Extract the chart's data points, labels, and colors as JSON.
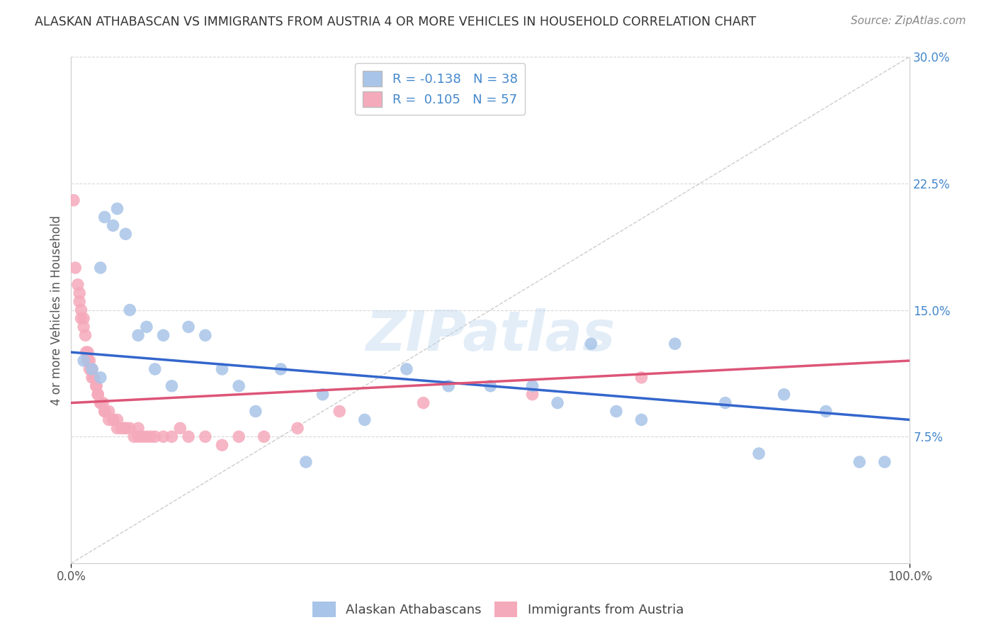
{
  "title": "ALASKAN ATHABASCAN VS IMMIGRANTS FROM AUSTRIA 4 OR MORE VEHICLES IN HOUSEHOLD CORRELATION CHART",
  "source": "Source: ZipAtlas.com",
  "ylabel": "4 or more Vehicles in Household",
  "xlim": [
    0,
    100
  ],
  "ylim": [
    0,
    30
  ],
  "ytick_labels_right": [
    "7.5%",
    "15.0%",
    "22.5%",
    "30.0%"
  ],
  "ytick_vals_right": [
    7.5,
    15.0,
    22.5,
    30.0
  ],
  "blue_R": "-0.138",
  "blue_N": "38",
  "pink_R": "0.105",
  "pink_N": "57",
  "blue_color": "#a8c4e8",
  "pink_color": "#f5aabb",
  "blue_line_color": "#3366cc",
  "pink_line_color": "#dd5577",
  "diagonal_color": "#cccccc",
  "legend_label_blue": "Alaskan Athabascans",
  "legend_label_pink": "Immigrants from Austria",
  "blue_points_x": [
    1.5,
    2.5,
    3.5,
    3.5,
    4.0,
    5.0,
    5.5,
    6.5,
    7.0,
    8.0,
    9.0,
    10.0,
    11.0,
    12.0,
    14.0,
    16.0,
    18.0,
    20.0,
    22.0,
    25.0,
    28.0,
    30.0,
    35.0,
    40.0,
    45.0,
    50.0,
    55.0,
    58.0,
    62.0,
    65.0,
    68.0,
    72.0,
    78.0,
    82.0,
    85.0,
    90.0,
    94.0,
    97.0
  ],
  "blue_points_y": [
    12.0,
    11.5,
    17.5,
    11.0,
    20.5,
    20.0,
    21.0,
    19.5,
    15.0,
    13.5,
    14.0,
    11.5,
    13.5,
    10.5,
    14.0,
    13.5,
    11.5,
    10.5,
    9.0,
    11.5,
    6.0,
    10.0,
    8.5,
    11.5,
    10.5,
    10.5,
    10.5,
    9.5,
    13.0,
    9.0,
    8.5,
    13.0,
    9.5,
    6.5,
    10.0,
    9.0,
    6.0,
    6.0
  ],
  "pink_points_x": [
    0.3,
    0.5,
    0.8,
    1.0,
    1.0,
    1.2,
    1.2,
    1.5,
    1.5,
    1.7,
    1.8,
    2.0,
    2.0,
    2.2,
    2.2,
    2.5,
    2.5,
    2.7,
    3.0,
    3.0,
    3.2,
    3.2,
    3.5,
    3.5,
    3.8,
    4.0,
    4.0,
    4.5,
    4.5,
    5.0,
    5.0,
    5.5,
    5.5,
    6.0,
    6.5,
    6.5,
    7.0,
    7.5,
    8.0,
    8.0,
    8.5,
    9.0,
    9.5,
    10.0,
    11.0,
    12.0,
    13.0,
    14.0,
    16.0,
    18.0,
    20.0,
    23.0,
    27.0,
    32.0,
    42.0,
    55.0,
    68.0
  ],
  "pink_points_y": [
    21.5,
    17.5,
    16.5,
    16.0,
    15.5,
    15.0,
    14.5,
    14.5,
    14.0,
    13.5,
    12.5,
    12.5,
    12.0,
    12.0,
    11.5,
    11.5,
    11.0,
    11.0,
    10.5,
    10.5,
    10.0,
    10.0,
    9.5,
    9.5,
    9.5,
    9.0,
    9.0,
    9.0,
    8.5,
    8.5,
    8.5,
    8.5,
    8.0,
    8.0,
    8.0,
    8.0,
    8.0,
    7.5,
    8.0,
    7.5,
    7.5,
    7.5,
    7.5,
    7.5,
    7.5,
    7.5,
    8.0,
    7.5,
    7.5,
    7.0,
    7.5,
    7.5,
    8.0,
    9.0,
    9.5,
    10.0,
    11.0
  ],
  "watermark_text": "ZIPatlas",
  "background_color": "#ffffff",
  "grid_color": "#d8d8d8"
}
